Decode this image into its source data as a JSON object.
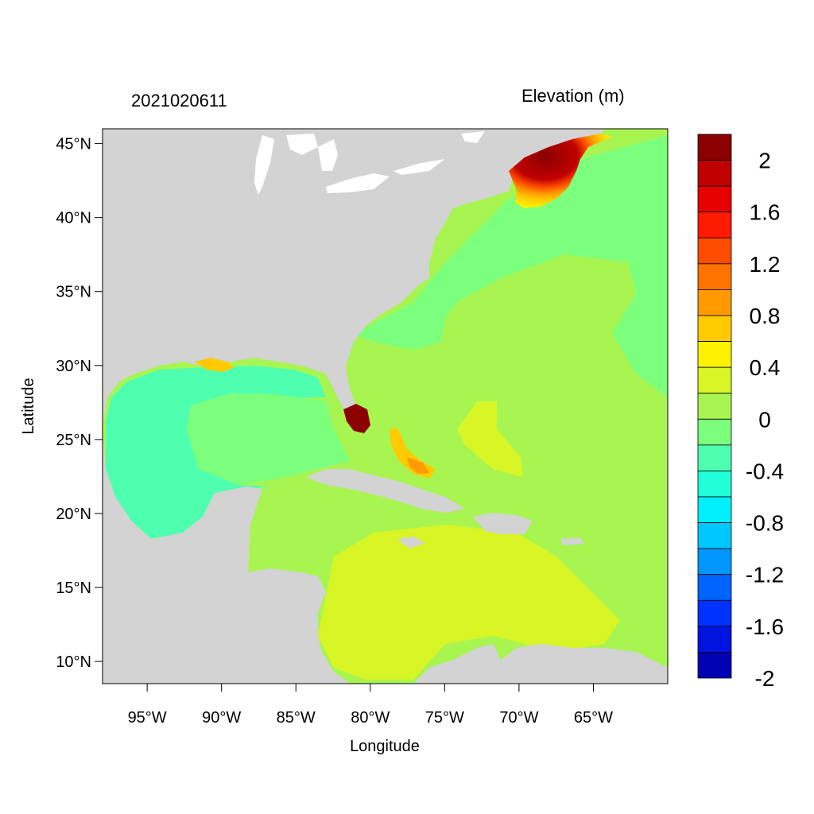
{
  "map": {
    "date_label": "2021020611",
    "variable_label": "Elevation (m)",
    "xlabel": "Longitude",
    "ylabel": "Latitude",
    "lon_range": [
      -98,
      -60
    ],
    "lat_range": [
      8.5,
      46
    ],
    "lon_ticks": [
      "95°W",
      "90°W",
      "85°W",
      "80°W",
      "75°W",
      "70°W",
      "65°W"
    ],
    "lon_tick_values": [
      -95,
      -90,
      -85,
      -80,
      -75,
      -70,
      -65
    ],
    "lat_ticks": [
      "45°N",
      "40°N",
      "35°N",
      "30°N",
      "25°N",
      "20°N",
      "15°N",
      "10°N"
    ],
    "lat_tick_values": [
      45,
      40,
      35,
      30,
      25,
      20,
      15,
      10
    ],
    "land_color": "#d3d3d3"
  },
  "colorbar": {
    "labels": [
      "2",
      "1.6",
      "1.2",
      "0.8",
      "0.4",
      "0",
      "-0.4",
      "-0.8",
      "-1.2",
      "-1.6",
      "-2"
    ],
    "colors_top_to_bottom": [
      "#8b0000",
      "#c00000",
      "#e60000",
      "#ff1a00",
      "#ff4d00",
      "#ff7300",
      "#ff9a00",
      "#ffca00",
      "#fff200",
      "#d8f526",
      "#a8f552",
      "#7cff7c",
      "#4fffb0",
      "#20ffd8",
      "#00f0ff",
      "#00c8ff",
      "#0096ff",
      "#0064ff",
      "#0032ff",
      "#0014e0",
      "#0000b4"
    ]
  }
}
